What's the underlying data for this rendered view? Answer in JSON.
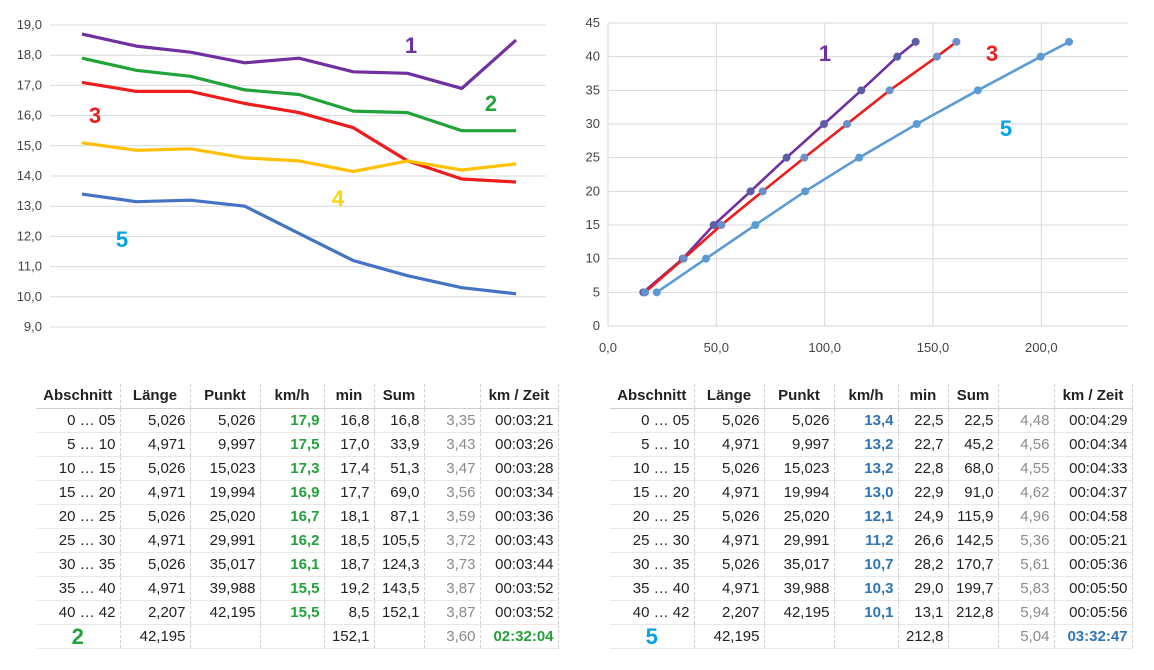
{
  "colors": {
    "s1": "#7030a0",
    "s2": "#22a33a",
    "s3": "#ee1c1c",
    "s4": "#ffc000",
    "s5": "#4472c4",
    "s5_light": "#5b9bd5",
    "label5": "#00a2e8",
    "label4": "#ffd500"
  },
  "chart_data": [
    {
      "type": "line",
      "ylim": [
        9,
        19
      ],
      "y_ticks": [
        "9,0",
        "10,0",
        "11,0",
        "12,0",
        "13,0",
        "14,0",
        "15,0",
        "16,0",
        "17,0",
        "18,0",
        "19,0"
      ],
      "series": [
        {
          "name": "1",
          "values": [
            18.7,
            18.3,
            18.1,
            17.75,
            17.9,
            17.45,
            17.4,
            16.9,
            18.5
          ]
        },
        {
          "name": "2",
          "values": [
            17.9,
            17.5,
            17.3,
            16.85,
            16.7,
            16.15,
            16.1,
            15.5,
            15.5
          ]
        },
        {
          "name": "3",
          "values": [
            17.1,
            16.8,
            16.8,
            16.4,
            16.1,
            15.6,
            14.5,
            13.9,
            13.8
          ]
        },
        {
          "name": "4",
          "values": [
            15.1,
            14.85,
            14.9,
            14.6,
            14.5,
            14.15,
            14.5,
            14.2,
            14.4
          ]
        },
        {
          "name": "5",
          "values": [
            13.4,
            13.15,
            13.2,
            13.0,
            12.1,
            11.2,
            10.7,
            10.3,
            10.1
          ]
        }
      ]
    },
    {
      "type": "scatter",
      "xlim": [
        0,
        240
      ],
      "ylim": [
        0,
        45
      ],
      "x_ticks": [
        "0,0",
        "50,0",
        "100,0",
        "150,0",
        "200,0"
      ],
      "y_ticks": [
        "0",
        "5",
        "10",
        "15",
        "20",
        "25",
        "30",
        "35",
        "40",
        "45"
      ],
      "series": [
        {
          "name": "1",
          "x": [
            16.3,
            34.5,
            48.8,
            65.8,
            82.4,
            99.7,
            116.9,
            133.5,
            142.0
          ],
          "y": [
            5,
            10,
            15,
            20,
            25,
            30,
            35,
            40,
            42.2
          ]
        },
        {
          "name": "3",
          "x": [
            17.1,
            34.9,
            52.3,
            71.4,
            90.6,
            110.3,
            130.0,
            151.8,
            160.8
          ],
          "y": [
            5,
            10,
            15,
            20,
            25,
            30,
            35,
            40,
            42.2
          ]
        },
        {
          "name": "5",
          "x": [
            22.5,
            45.2,
            68.0,
            91.0,
            115.9,
            142.5,
            170.7,
            199.7,
            212.8
          ],
          "y": [
            5,
            10,
            15,
            20,
            25,
            30,
            35,
            40,
            42.2
          ]
        }
      ]
    }
  ],
  "tables": {
    "headers": [
      "Abschnitt",
      "Länge",
      "Punkt",
      "km/h",
      "min",
      "Sum",
      "",
      "km / Zeit"
    ],
    "left": {
      "rows": [
        [
          "0 … 05",
          "5,026",
          "5,026",
          "17,9",
          "16,8",
          "16,8",
          "3,35",
          "00:03:21"
        ],
        [
          "5 … 10",
          "4,971",
          "9,997",
          "17,5",
          "17,0",
          "33,9",
          "3,43",
          "00:03:26"
        ],
        [
          "10 … 15",
          "5,026",
          "15,023",
          "17,3",
          "17,4",
          "51,3",
          "3,47",
          "00:03:28"
        ],
        [
          "15 … 20",
          "4,971",
          "19,994",
          "16,9",
          "17,7",
          "69,0",
          "3,56",
          "00:03:34"
        ],
        [
          "20 … 25",
          "5,026",
          "25,020",
          "16,7",
          "18,1",
          "87,1",
          "3,59",
          "00:03:36"
        ],
        [
          "25 … 30",
          "4,971",
          "29,991",
          "16,2",
          "18,5",
          "105,5",
          "3,72",
          "00:03:43"
        ],
        [
          "30 … 35",
          "5,026",
          "35,017",
          "16,1",
          "18,7",
          "124,3",
          "3,73",
          "00:03:44"
        ],
        [
          "35 … 40",
          "4,971",
          "39,988",
          "15,5",
          "19,2",
          "143,5",
          "3,87",
          "00:03:52"
        ],
        [
          "40 … 42",
          "2,207",
          "42,195",
          "15,5",
          "8,5",
          "152,1",
          "3,87",
          "00:03:52"
        ]
      ],
      "total": {
        "mark": "2",
        "length": "42,195",
        "min": "152,1",
        "pace": "3,60",
        "time": "02:32:04"
      }
    },
    "right": {
      "rows": [
        [
          "0 … 05",
          "5,026",
          "5,026",
          "13,4",
          "22,5",
          "22,5",
          "4,48",
          "00:04:29"
        ],
        [
          "5 … 10",
          "4,971",
          "9,997",
          "13,2",
          "22,7",
          "45,2",
          "4,56",
          "00:04:34"
        ],
        [
          "10 … 15",
          "5,026",
          "15,023",
          "13,2",
          "22,8",
          "68,0",
          "4,55",
          "00:04:33"
        ],
        [
          "15 … 20",
          "4,971",
          "19,994",
          "13,0",
          "22,9",
          "91,0",
          "4,62",
          "00:04:37"
        ],
        [
          "20 … 25",
          "5,026",
          "25,020",
          "12,1",
          "24,9",
          "115,9",
          "4,96",
          "00:04:58"
        ],
        [
          "25 … 30",
          "4,971",
          "29,991",
          "11,2",
          "26,6",
          "142,5",
          "5,36",
          "00:05:21"
        ],
        [
          "30 … 35",
          "5,026",
          "35,017",
          "10,7",
          "28,2",
          "170,7",
          "5,61",
          "00:05:36"
        ],
        [
          "35 … 40",
          "4,971",
          "39,988",
          "10,3",
          "29,0",
          "199,7",
          "5,83",
          "00:05:50"
        ],
        [
          "40 … 42",
          "2,207",
          "42,195",
          "10,1",
          "13,1",
          "212,8",
          "5,94",
          "00:05:56"
        ]
      ],
      "total": {
        "mark": "5",
        "length": "42,195",
        "min": "212,8",
        "pace": "5,04",
        "time": "03:32:47"
      }
    }
  }
}
